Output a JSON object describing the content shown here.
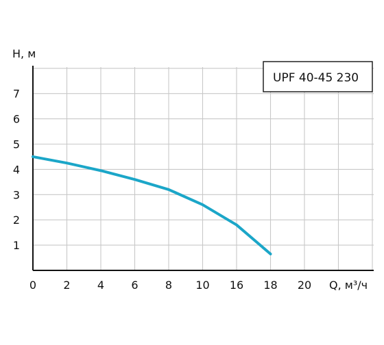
{
  "chart_data": {
    "type": "line",
    "title": "",
    "xlabel": "Q, м³/ч",
    "ylabel": "H, м",
    "x_tick_labels": [
      "0",
      "2",
      "4",
      "6",
      "8",
      "10",
      "16",
      "18",
      "20"
    ],
    "y_tick_labels": [
      "1",
      "2",
      "3",
      "4",
      "5",
      "6",
      "7"
    ],
    "grid": true,
    "legend_text": "UPF 40-45  230",
    "legend_position": "top-right",
    "colors": {
      "series": "#1ba6c8",
      "grid": "#c8c8c8",
      "axis": "#111111"
    },
    "series": [
      {
        "x": [
          0,
          2,
          4,
          6,
          8,
          10,
          16,
          18
        ],
        "y": [
          4.5,
          4.25,
          3.95,
          3.6,
          3.2,
          2.6,
          1.8,
          0.65
        ]
      }
    ]
  }
}
